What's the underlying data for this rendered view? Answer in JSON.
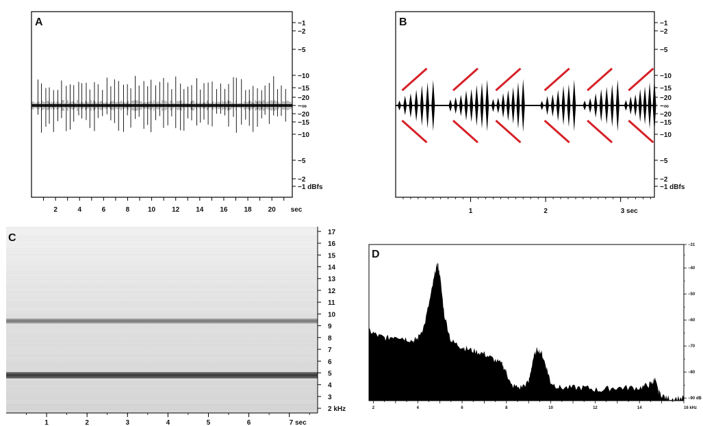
{
  "chart_data": [
    {
      "panel": "A",
      "type": "line",
      "x_unit": "sec",
      "x_ticks": [
        2,
        4,
        6,
        8,
        10,
        12,
        14,
        16,
        18,
        20
      ],
      "x_tick_labels": [
        "2",
        "4",
        "6",
        "8",
        "10",
        "12",
        "14",
        "16",
        "18",
        "20"
      ],
      "xlim": [
        0,
        21.7
      ],
      "right_axis_ticks": [
        {
          "label": "−1"
        },
        {
          "label": "−2"
        },
        {
          "label": "−5"
        },
        {
          "label": "−10"
        },
        {
          "label": "−15"
        },
        {
          "label": "−20"
        },
        {
          "label": "−∞"
        },
        {
          "label": "−20"
        },
        {
          "label": "−15"
        },
        {
          "label": "−10"
        },
        {
          "label": "−5"
        },
        {
          "label": "−2"
        },
        {
          "label": "−1 dBfs"
        }
      ],
      "description_series": {
        "name": "",
        "pulse_count": 62,
        "pulse_peak_dbfs": -10
      }
    },
    {
      "panel": "B",
      "type": "line",
      "x_unit": "sec",
      "x_ticks": [
        1,
        2,
        3
      ],
      "x_tick_labels": [
        "1",
        "2",
        "3 sec"
      ],
      "xlim": [
        0,
        3.45
      ],
      "right_axis_ticks": [
        {
          "label": "−1"
        },
        {
          "label": "−2"
        },
        {
          "label": "−5"
        },
        {
          "label": "−10"
        },
        {
          "label": "−15"
        },
        {
          "label": "−20"
        },
        {
          "label": "−∞"
        },
        {
          "label": "−20"
        },
        {
          "label": "−15"
        },
        {
          "label": "−10"
        },
        {
          "label": "−5"
        },
        {
          "label": "−2"
        },
        {
          "label": "−1 dBfs"
        }
      ],
      "pulse_groups": [
        {
          "start": 0.05,
          "end": 0.5,
          "pulses": 7
        },
        {
          "start": 0.73,
          "end": 1.22,
          "pulses": 8
        },
        {
          "start": 1.3,
          "end": 1.7,
          "pulses": 7
        },
        {
          "start": 1.95,
          "end": 2.38,
          "pulses": 7
        },
        {
          "start": 2.52,
          "end": 2.96,
          "pulses": 7
        },
        {
          "start": 3.07,
          "end": 3.45,
          "pulses": 7
        }
      ],
      "annotation_color": "#d62027"
    },
    {
      "panel": "C",
      "type": "heatmap",
      "x_ticks": [
        1,
        2,
        3,
        4,
        5,
        6,
        7
      ],
      "x_tick_labels": [
        "1",
        "2",
        "3",
        "4",
        "5",
        "6",
        "7 sec"
      ],
      "xlim": [
        0,
        7.7
      ],
      "y_unit": "kHz",
      "y_ticks": [
        2,
        3,
        4,
        5,
        6,
        7,
        8,
        9,
        10,
        11,
        12,
        13,
        14,
        15,
        16,
        17
      ],
      "y_tick_labels": [
        "2 kHz",
        "3",
        "4",
        "5",
        "6",
        "7",
        "8",
        "9",
        "10",
        "11",
        "12",
        "13",
        "14",
        "15",
        "16",
        "17"
      ],
      "ylim": [
        1.6,
        17.4
      ],
      "bands_khz": [
        4.8,
        9.4
      ]
    },
    {
      "panel": "D",
      "type": "area",
      "x_unit": "kHz",
      "x_ticks": [
        2,
        4,
        6,
        8,
        10,
        12,
        14,
        16
      ],
      "x_tick_labels": [
        "2",
        "4",
        "6",
        "8",
        "10",
        "12",
        "14",
        "16 kHz"
      ],
      "xlim": [
        1.8,
        16.0
      ],
      "y_unit": "dB",
      "y_ticks": [
        -31,
        -40,
        -50,
        -60,
        -70,
        -80,
        -90
      ],
      "y_tick_labels": [
        "−31",
        "−40",
        "−50",
        "−60",
        "−70",
        "−80",
        "−90 dB"
      ],
      "ylim": [
        -91,
        -31
      ],
      "x": [
        1.8,
        2.2,
        2.6,
        3.0,
        3.4,
        3.8,
        4.0,
        4.3,
        4.6,
        4.8,
        4.9,
        5.0,
        5.2,
        5.5,
        5.9,
        6.2,
        6.6,
        7.0,
        7.4,
        7.8,
        8.0,
        8.2,
        8.6,
        9.0,
        9.2,
        9.4,
        9.6,
        9.8,
        10.0,
        10.4,
        11.0,
        11.6,
        12.2,
        12.8,
        13.4,
        14.0,
        14.4,
        14.6,
        14.7,
        14.8,
        14.9,
        15.2,
        15.6,
        16.0
      ],
      "y": [
        -64,
        -66,
        -67,
        -66,
        -67,
        -68,
        -67,
        -62,
        -50,
        -41,
        -38,
        -43,
        -58,
        -68,
        -70,
        -71,
        -72,
        -73,
        -75,
        -77,
        -80,
        -85,
        -86,
        -84,
        -75,
        -71,
        -73,
        -78,
        -84,
        -86,
        -86,
        -86,
        -87,
        -86,
        -86,
        -86,
        -85,
        -84,
        -82,
        -86,
        -88,
        -90,
        -90,
        -90
      ]
    }
  ],
  "labels": {
    "panel_a": "A",
    "panel_b": "B",
    "panel_c": "C",
    "panel_d": "D"
  }
}
